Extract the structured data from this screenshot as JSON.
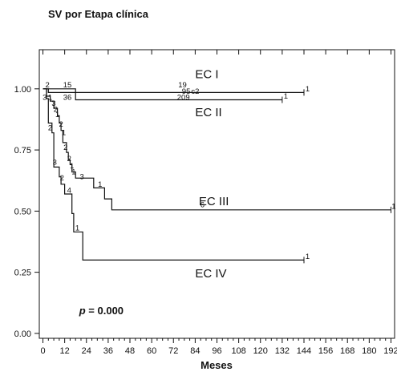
{
  "chart_data": {
    "type": "line",
    "title": "SV por Etapa clínica",
    "xlabel": "Meses",
    "ylabel": "",
    "xlim": [
      -2,
      194
    ],
    "ylim": [
      -0.02,
      1.16
    ],
    "x_ticks": [
      0,
      12,
      24,
      36,
      48,
      60,
      72,
      84,
      96,
      108,
      120,
      132,
      144,
      156,
      168,
      180,
      192
    ],
    "x_tick_labels": [
      "0",
      "12",
      "24",
      "36",
      "48",
      "60",
      "72",
      "84",
      "96",
      "108",
      "120",
      "132",
      "144",
      "156",
      "168",
      "180",
      "192"
    ],
    "x_minor_ticks": [
      3,
      6,
      9,
      15,
      18,
      21,
      27,
      30,
      33,
      39,
      42,
      45,
      51,
      54,
      57,
      63,
      66,
      69,
      75,
      78,
      81,
      87,
      90,
      93,
      99,
      102,
      105,
      111,
      114,
      117,
      123,
      126,
      129,
      135,
      138,
      141,
      147,
      150,
      153,
      159,
      162,
      165,
      171,
      174,
      177,
      183,
      186,
      189
    ],
    "y_ticks": [
      0.0,
      0.25,
      0.5,
      0.75,
      1.0
    ],
    "y_tick_labels": [
      "0.00",
      "0.25",
      "0.50",
      "0.75",
      "1.00"
    ],
    "top_ticks": [
      0,
      12,
      24,
      36,
      48,
      60,
      72,
      84,
      96,
      108,
      120,
      132,
      144,
      156,
      168,
      180,
      192
    ],
    "grid": false,
    "series": [
      {
        "name": "EC I",
        "label_pos": [
          84,
          1.06
        ],
        "steps": [
          [
            0,
            1.0
          ],
          [
            3,
            1.0
          ],
          [
            3,
            0.985
          ],
          [
            144,
            0.985
          ]
        ],
        "end": [
          144,
          0.985
        ]
      },
      {
        "name": "EC II",
        "label_pos": [
          84,
          0.905
        ],
        "steps": [
          [
            0,
            1.0
          ],
          [
            18,
            1.0
          ],
          [
            18,
            0.955
          ],
          [
            132,
            0.955
          ]
        ],
        "end": [
          132,
          0.955
        ]
      },
      {
        "name": "EC III",
        "label_pos": [
          86,
          0.54
        ],
        "steps": [
          [
            0,
            1.0
          ],
          [
            2,
            1.0
          ],
          [
            2,
            0.97
          ],
          [
            4,
            0.97
          ],
          [
            4,
            0.95
          ],
          [
            6,
            0.95
          ],
          [
            6,
            0.92
          ],
          [
            8,
            0.92
          ],
          [
            8,
            0.89
          ],
          [
            9,
            0.89
          ],
          [
            9,
            0.86
          ],
          [
            10,
            0.86
          ],
          [
            10,
            0.83
          ],
          [
            11,
            0.83
          ],
          [
            11,
            0.78
          ],
          [
            13,
            0.78
          ],
          [
            13,
            0.74
          ],
          [
            14,
            0.74
          ],
          [
            14,
            0.71
          ],
          [
            15,
            0.71
          ],
          [
            15,
            0.69
          ],
          [
            16,
            0.69
          ],
          [
            16,
            0.66
          ],
          [
            18,
            0.66
          ],
          [
            18,
            0.635
          ],
          [
            28,
            0.635
          ],
          [
            28,
            0.595
          ],
          [
            34,
            0.595
          ],
          [
            34,
            0.55
          ],
          [
            38,
            0.55
          ],
          [
            38,
            0.505
          ],
          [
            192,
            0.505
          ]
        ],
        "end": [
          192,
          0.505
        ]
      },
      {
        "name": "EC IV",
        "label_pos": [
          84,
          0.245
        ],
        "steps": [
          [
            0,
            1.0
          ],
          [
            2,
            1.0
          ],
          [
            2,
            0.96
          ],
          [
            3,
            0.96
          ],
          [
            3,
            0.86
          ],
          [
            5,
            0.86
          ],
          [
            5,
            0.82
          ],
          [
            6,
            0.82
          ],
          [
            6,
            0.68
          ],
          [
            9,
            0.68
          ],
          [
            9,
            0.64
          ],
          [
            10,
            0.64
          ],
          [
            10,
            0.61
          ],
          [
            12,
            0.61
          ],
          [
            12,
            0.57
          ],
          [
            16,
            0.57
          ],
          [
            16,
            0.49
          ],
          [
            17,
            0.49
          ],
          [
            17,
            0.415
          ],
          [
            22,
            0.415
          ],
          [
            22,
            0.3
          ],
          [
            144,
            0.3
          ]
        ],
        "end": [
          144,
          0.3
        ]
      }
    ],
    "risk_numbers": [
      {
        "text": "2",
        "x": 2.5,
        "y": 1.015
      },
      {
        "text": "15",
        "x": 13.5,
        "y": 1.015
      },
      {
        "text": "19",
        "x": 77,
        "y": 1.015
      },
      {
        "text": "3",
        "x": 1,
        "y": 0.965
      },
      {
        "text": "1",
        "x": 4,
        "y": 0.965
      },
      {
        "text": "36",
        "x": 13.5,
        "y": 0.965
      },
      {
        "text": "95",
        "x": 79,
        "y": 0.99
      },
      {
        "text": "c2",
        "x": 84,
        "y": 0.99
      },
      {
        "text": "209",
        "x": 77.5,
        "y": 0.965
      },
      {
        "text": "1",
        "x": 146,
        "y": 1.0
      },
      {
        "text": "1",
        "x": 134,
        "y": 0.97
      },
      {
        "text": "3",
        "x": 6,
        "y": 0.94
      },
      {
        "text": "2",
        "x": 7,
        "y": 0.915
      },
      {
        "text": "1",
        "x": 8,
        "y": 0.895
      },
      {
        "text": "2",
        "x": 10,
        "y": 0.855
      },
      {
        "text": "2",
        "x": 4,
        "y": 0.84
      },
      {
        "text": "1",
        "x": 11.5,
        "y": 0.82
      },
      {
        "text": "2",
        "x": 12.5,
        "y": 0.76
      },
      {
        "text": "2",
        "x": 14.5,
        "y": 0.715
      },
      {
        "text": "1",
        "x": 16,
        "y": 0.685
      },
      {
        "text": "1",
        "x": 17,
        "y": 0.66
      },
      {
        "text": "3",
        "x": 6.5,
        "y": 0.7
      },
      {
        "text": "3",
        "x": 21.5,
        "y": 0.64
      },
      {
        "text": "2",
        "x": 10.5,
        "y": 0.635
      },
      {
        "text": "4",
        "x": 14.5,
        "y": 0.585
      },
      {
        "text": "1",
        "x": 31.5,
        "y": 0.61
      },
      {
        "text": "1",
        "x": 19,
        "y": 0.43
      },
      {
        "text": "1",
        "x": 193.5,
        "y": 0.52
      },
      {
        "text": "6",
        "x": 88,
        "y": 0.525
      },
      {
        "text": "1",
        "x": 146,
        "y": 0.315
      }
    ],
    "annotation": {
      "p_label": "p",
      "p_value": "= 0.000",
      "x": 20,
      "y": 0.095
    }
  }
}
